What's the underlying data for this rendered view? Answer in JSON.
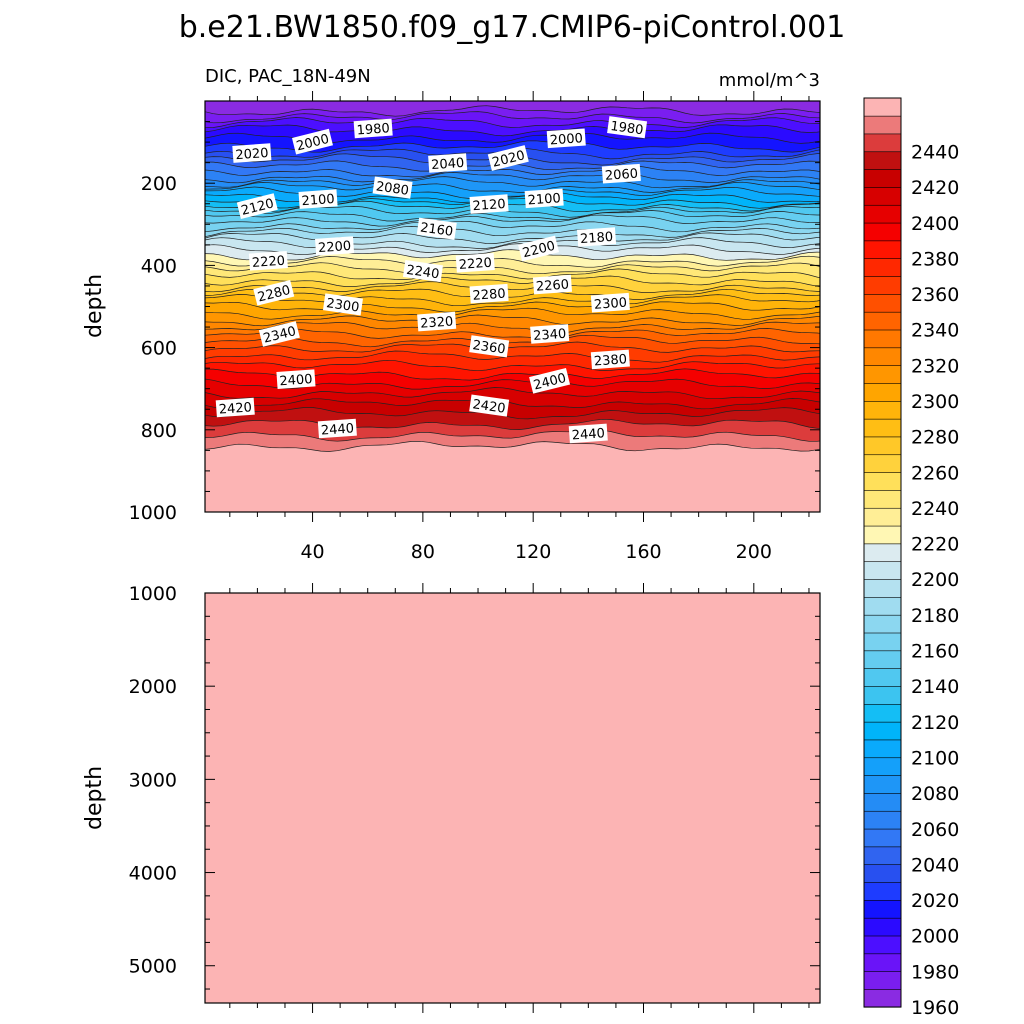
{
  "chart_data": {
    "type": "contour",
    "title": "b.e21.BW1850.f09_g17.CMIP6-piControl.001",
    "left_subtitle": "DIC, PAC_18N-49N",
    "right_subtitle": "mmol/m^3",
    "x_ticks": [
      40,
      80,
      120,
      160,
      200
    ],
    "xlim": [
      1,
      224
    ],
    "panels": [
      {
        "name": "upper",
        "ylabel": "depth",
        "ylim": [
          0,
          1000
        ],
        "y_ticks": [
          200,
          400,
          600,
          800,
          1000
        ],
        "depth_profile": [
          {
            "depth": 10,
            "value": 1950
          },
          {
            "depth": 60,
            "value": 1985
          },
          {
            "depth": 120,
            "value": 2015
          },
          {
            "depth": 180,
            "value": 2055
          },
          {
            "depth": 230,
            "value": 2095
          },
          {
            "depth": 290,
            "value": 2150
          },
          {
            "depth": 340,
            "value": 2185
          },
          {
            "depth": 360,
            "value": 2200
          },
          {
            "depth": 400,
            "value": 2225
          },
          {
            "depth": 500,
            "value": 2290
          },
          {
            "depth": 600,
            "value": 2350
          },
          {
            "depth": 700,
            "value": 2395
          },
          {
            "depth": 760,
            "value": 2420
          },
          {
            "depth": 840,
            "value": 2450
          },
          {
            "depth": 1000,
            "value": 2460
          }
        ],
        "contour_labels": [
          {
            "text": "1980",
            "x": 62,
            "depth": 68
          },
          {
            "text": "2000",
            "x": 40,
            "depth": 100
          },
          {
            "text": "2020",
            "x": 18,
            "depth": 128
          },
          {
            "text": "1980",
            "x": 154,
            "depth": 65
          },
          {
            "text": "2000",
            "x": 132,
            "depth": 92
          },
          {
            "text": "2040",
            "x": 89,
            "depth": 152
          },
          {
            "text": "2020",
            "x": 111,
            "depth": 140
          },
          {
            "text": "2060",
            "x": 152,
            "depth": 178
          },
          {
            "text": "2080",
            "x": 69,
            "depth": 212
          },
          {
            "text": "2100",
            "x": 42,
            "depth": 240
          },
          {
            "text": "2100",
            "x": 124,
            "depth": 238
          },
          {
            "text": "2120",
            "x": 20,
            "depth": 257
          },
          {
            "text": "2120",
            "x": 104,
            "depth": 252
          },
          {
            "text": "2160",
            "x": 85,
            "depth": 312
          },
          {
            "text": "2180",
            "x": 143,
            "depth": 332
          },
          {
            "text": "2200",
            "x": 48,
            "depth": 354
          },
          {
            "text": "2200",
            "x": 122,
            "depth": 360
          },
          {
            "text": "2220",
            "x": 24,
            "depth": 390
          },
          {
            "text": "2240",
            "x": 80,
            "depth": 415
          },
          {
            "text": "2220",
            "x": 99,
            "depth": 395
          },
          {
            "text": "2260",
            "x": 127,
            "depth": 448
          },
          {
            "text": "2280",
            "x": 26,
            "depth": 468
          },
          {
            "text": "2280",
            "x": 104,
            "depth": 470
          },
          {
            "text": "2300",
            "x": 51,
            "depth": 496
          },
          {
            "text": "2300",
            "x": 148,
            "depth": 492
          },
          {
            "text": "2320",
            "x": 85,
            "depth": 538
          },
          {
            "text": "2340",
            "x": 28,
            "depth": 568
          },
          {
            "text": "2340",
            "x": 126,
            "depth": 568
          },
          {
            "text": "2360",
            "x": 104,
            "depth": 598
          },
          {
            "text": "2380",
            "x": 148,
            "depth": 630
          },
          {
            "text": "2400",
            "x": 34,
            "depth": 678
          },
          {
            "text": "2400",
            "x": 126,
            "depth": 682
          },
          {
            "text": "2420",
            "x": 12,
            "depth": 747
          },
          {
            "text": "2420",
            "x": 104,
            "depth": 742
          },
          {
            "text": "2440",
            "x": 49,
            "depth": 798
          },
          {
            "text": "2440",
            "x": 140,
            "depth": 810
          }
        ]
      },
      {
        "name": "lower",
        "ylabel": "depth",
        "ylim": [
          1000,
          5400
        ],
        "y_ticks": [
          1000,
          2000,
          3000,
          4000,
          5000
        ],
        "depth_profile": [
          {
            "depth": 1000,
            "value": 2460
          },
          {
            "depth": 5400,
            "value": 2460
          }
        ]
      }
    ],
    "colorbar": {
      "levels": [
        1960,
        1970,
        1980,
        1990,
        2000,
        2010,
        2020,
        2030,
        2040,
        2050,
        2060,
        2070,
        2080,
        2090,
        2100,
        2110,
        2120,
        2130,
        2140,
        2150,
        2160,
        2170,
        2180,
        2190,
        2200,
        2210,
        2220,
        2230,
        2240,
        2250,
        2260,
        2270,
        2280,
        2290,
        2300,
        2310,
        2320,
        2330,
        2340,
        2350,
        2360,
        2370,
        2380,
        2390,
        2400,
        2410,
        2420,
        2430,
        2440,
        2450
      ],
      "tick_labels": [
        "1960",
        "1980",
        "2000",
        "2020",
        "2040",
        "2060",
        "2080",
        "2100",
        "2120",
        "2140",
        "2160",
        "2180",
        "2200",
        "2220",
        "2240",
        "2260",
        "2280",
        "2300",
        "2320",
        "2340",
        "2360",
        "2380",
        "2400",
        "2420",
        "2440"
      ],
      "colors": [
        "#8a2be2",
        "#7a1ef0",
        "#6a14f8",
        "#4c0fff",
        "#2b0aff",
        "#1414ff",
        "#1e3cff",
        "#2850f0",
        "#3064f0",
        "#3278f5",
        "#2c82f5",
        "#248cf5",
        "#1e96f7",
        "#14a0fa",
        "#0aaafc",
        "#00b4fa",
        "#14bef5",
        "#3cc4f0",
        "#50c8f0",
        "#64cdf0",
        "#78d2f0",
        "#8cd7f0",
        "#a0dcf0",
        "#b4e1f0",
        "#c8e6f0",
        "#dcebf0",
        "#fff7b4",
        "#ffee96",
        "#ffe878",
        "#ffe05a",
        "#ffd23c",
        "#ffc828",
        "#ffbe14",
        "#ffb40a",
        "#ffa500",
        "#ff9600",
        "#ff8700",
        "#ff7800",
        "#ff6400",
        "#ff5000",
        "#ff3c00",
        "#ff2800",
        "#ff1400",
        "#f50000",
        "#e60000",
        "#d70000",
        "#c80000",
        "#c01010",
        "#dc3c3c",
        "#ec7a7a",
        "#fcb4b4"
      ]
    }
  }
}
